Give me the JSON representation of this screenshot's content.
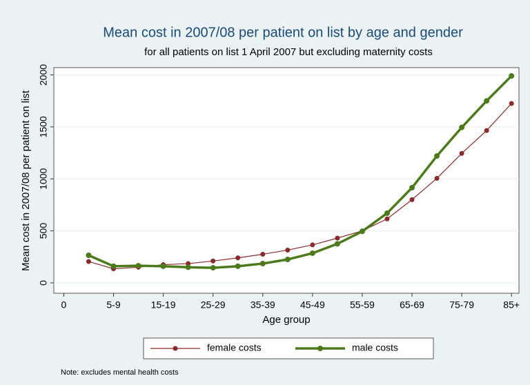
{
  "chart_data": {
    "type": "line",
    "title": "Mean cost in 2007/08 per patient on list by age and gender",
    "subtitle": "for all patients on list 1 April 2007 but excluding maternity costs",
    "x_label": "Age group",
    "y_label": "Mean cost in 2007/08 per patient on list",
    "note": "Note: excludes mental health costs",
    "x": [
      1,
      2,
      3,
      4,
      5,
      6,
      7,
      8,
      9,
      10,
      11,
      12,
      13,
      14,
      15,
      16,
      17,
      18
    ],
    "series": [
      {
        "name": "female costs",
        "color": "#8b2a2a",
        "values": [
          205,
          135,
          150,
          175,
          185,
          210,
          240,
          275,
          315,
          365,
          430,
          500,
          615,
          800,
          1005,
          1245,
          1465,
          1725
        ]
      },
      {
        "name": "male costs",
        "color": "#4a7a1a",
        "values": [
          265,
          160,
          165,
          160,
          150,
          145,
          160,
          185,
          225,
          285,
          375,
          495,
          670,
          915,
          1220,
          1495,
          1750,
          1990
        ]
      }
    ],
    "xlim": [
      -0.4,
      18.3
    ],
    "xticks": [
      0,
      {
        "value": 2,
        "label": "5-9"
      },
      {
        "value": 4,
        "label": "15-19"
      },
      {
        "value": 6,
        "label": "25-29"
      },
      {
        "value": 8,
        "label": "35-39"
      },
      {
        "value": 10,
        "label": "45-49"
      },
      {
        "value": 12,
        "label": "55-59"
      },
      {
        "value": 14,
        "label": "65-69"
      },
      {
        "value": 16,
        "label": "75-79"
      },
      {
        "value": 18,
        "label": "85+"
      }
    ],
    "ylim": [
      -100,
      2070
    ],
    "yticks": [
      0,
      500,
      1000,
      1500,
      2000
    ],
    "grid": true
  }
}
